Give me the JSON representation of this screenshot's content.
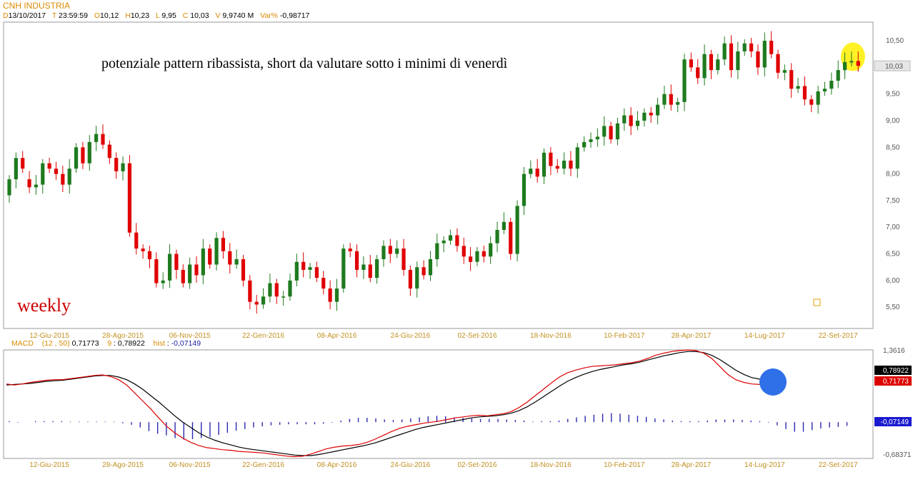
{
  "header": {
    "symbol": "CNH INDUSTRIA",
    "d_key": "D",
    "date": "13/10/2017",
    "t_key": "T",
    "time": "23:59:59",
    "o_key": "O",
    "open": "10,12",
    "h_key": "H",
    "high": "10,23",
    "l_key": "L",
    "low": "9,95",
    "c_key": "C",
    "close": "10,03",
    "v_key": "V",
    "volume": "9,9740 M",
    "var_key": "Var%",
    "var": "-0,98717"
  },
  "macd_header": {
    "label": "MACD",
    "params": "(12 , 50)",
    "macd_value": "0,71773",
    "signal_key": "9",
    "signal_value": "0,78922",
    "hist_key": "hist",
    "hist_value": "-0,07149"
  },
  "annotation": "potenziale pattern ribassista, short da valutare sotto i minimi di venerdì",
  "timeframe_label": "weekly",
  "colors": {
    "up": "#1e7a1e",
    "down": "#e00000",
    "macd": "#dd0000",
    "signal": "#000000",
    "hist": "#2a2ab0",
    "highlight_yellow": "#ffee00",
    "highlight_blue": "#2f6fe8",
    "tick": "#c09020"
  },
  "chart_data": [
    {
      "type": "candlestick",
      "title": "CNH INDUSTRIA",
      "ylim": [
        5.1,
        10.85
      ],
      "yticks": [
        "5,50",
        "6,00",
        "6,50",
        "7,00",
        "7,50",
        "8,00",
        "8,50",
        "9,00",
        "9,50",
        "10,50"
      ],
      "ytick_values": [
        5.5,
        6.0,
        6.5,
        7.0,
        7.5,
        8.0,
        8.5,
        9.0,
        9.5,
        10.5
      ],
      "last_price_label": "10,03",
      "last_price": 10.03,
      "xticks": [
        "12-Giu-2015",
        "28-Ago-2015",
        "06-Nov-2015",
        "22-Gen-2016",
        "08-Apr-2016",
        "24-Giu-2016",
        "02-Set-2016",
        "18-Nov-2016",
        "10-Feb-2017",
        "28-Apr-2017",
        "14-Lug-2017",
        "22-Set-2017"
      ],
      "xtick_index": [
        6,
        17,
        27,
        38,
        49,
        60,
        70,
        81,
        92,
        102,
        113,
        124
      ],
      "closes": [
        7.9,
        8.3,
        8.1,
        7.75,
        7.8,
        8.2,
        8.1,
        8.0,
        7.8,
        8.1,
        8.5,
        8.2,
        8.6,
        8.75,
        8.55,
        8.3,
        8.05,
        8.2,
        6.9,
        6.6,
        6.55,
        6.4,
        5.95,
        6.0,
        6.5,
        6.2,
        5.95,
        6.3,
        6.1,
        6.6,
        6.3,
        6.8,
        6.55,
        6.3,
        6.4,
        6.0,
        5.6,
        5.55,
        5.7,
        5.95,
        5.7,
        5.7,
        6.0,
        6.35,
        6.2,
        6.25,
        6.05,
        5.85,
        5.6,
        5.85,
        6.6,
        6.55,
        6.2,
        6.3,
        6.05,
        6.4,
        6.65,
        6.5,
        6.6,
        6.2,
        5.85,
        6.25,
        6.1,
        6.4,
        6.7,
        6.75,
        6.85,
        6.65,
        6.45,
        6.35,
        6.55,
        6.45,
        6.7,
        6.95,
        7.1,
        6.5,
        7.4,
        8.0,
        8.1,
        7.95,
        8.4,
        8.15,
        8.1,
        8.25,
        8.1,
        8.5,
        8.6,
        8.65,
        8.7,
        8.9,
        8.65,
        8.95,
        9.1,
        8.9,
        9.0,
        9.15,
        9.1,
        9.3,
        9.5,
        9.3,
        9.35,
        10.15,
        10.0,
        9.8,
        10.25,
        9.95,
        10.15,
        10.45,
        9.95,
        10.3,
        10.45,
        10.3,
        10.0,
        10.5,
        10.25,
        9.9,
        9.95,
        9.6,
        9.65,
        9.4,
        9.3,
        9.55,
        9.6,
        9.75,
        9.95,
        10.1,
        10.12,
        10.03
      ],
      "opens": [
        7.6,
        7.9,
        8.3,
        7.9,
        7.75,
        7.8,
        8.2,
        8.1,
        8.0,
        7.8,
        8.1,
        8.5,
        8.2,
        8.6,
        8.75,
        8.55,
        8.3,
        8.05,
        8.2,
        6.9,
        6.6,
        6.55,
        6.4,
        5.95,
        6.0,
        6.5,
        6.2,
        5.95,
        6.3,
        6.1,
        6.6,
        6.3,
        6.8,
        6.55,
        6.3,
        6.4,
        6.0,
        5.6,
        5.55,
        5.7,
        5.95,
        5.7,
        5.7,
        6.0,
        6.35,
        6.2,
        6.25,
        6.05,
        5.85,
        5.6,
        5.85,
        6.6,
        6.55,
        6.2,
        6.3,
        6.05,
        6.4,
        6.65,
        6.5,
        6.6,
        6.2,
        5.85,
        6.25,
        6.1,
        6.4,
        6.7,
        6.75,
        6.85,
        6.65,
        6.45,
        6.35,
        6.55,
        6.45,
        6.7,
        6.95,
        7.1,
        6.5,
        7.4,
        8.0,
        8.1,
        7.95,
        8.4,
        8.15,
        8.1,
        8.25,
        8.1,
        8.5,
        8.6,
        8.65,
        8.7,
        8.9,
        8.65,
        8.95,
        9.1,
        8.9,
        9.0,
        9.15,
        9.1,
        9.3,
        9.5,
        9.3,
        9.35,
        10.15,
        10.0,
        9.8,
        10.25,
        9.95,
        10.15,
        10.45,
        9.95,
        10.3,
        10.45,
        10.3,
        10.0,
        10.5,
        10.25,
        9.9,
        9.95,
        9.6,
        9.65,
        9.4,
        9.3,
        9.55,
        9.6,
        9.75,
        9.95,
        10.12,
        10.12
      ]
    },
    {
      "type": "line",
      "title": "MACD (12 , 50)",
      "ylim": [
        -0.68371,
        1.3616
      ],
      "ytick_labels": [
        "1,3616",
        "-0,68371"
      ],
      "value_labels": [
        "0,78922",
        "0,71773",
        "-0,07149"
      ],
      "xticks": [
        "12-Giu-2015",
        "28-Ago-2015",
        "06-Nov-2015",
        "22-Gen-2016",
        "08-Apr-2016",
        "24-Giu-2016",
        "02-Set-2016",
        "18-Nov-2016",
        "10-Feb-2017",
        "28-Apr-2017",
        "14-Lug-2017",
        "22-Set-2017"
      ],
      "series": [
        {
          "name": "MACD",
          "values": [
            0.72,
            0.7,
            0.72,
            0.75,
            0.77,
            0.79,
            0.8,
            0.8,
            0.82,
            0.84,
            0.86,
            0.88,
            0.89,
            0.86,
            0.8,
            0.7,
            0.55,
            0.4,
            0.25,
            0.08,
            -0.08,
            -0.2,
            -0.3,
            -0.38,
            -0.44,
            -0.48,
            -0.5,
            -0.52,
            -0.53,
            -0.55,
            -0.56,
            -0.57,
            -0.58,
            -0.6,
            -0.62,
            -0.64,
            -0.65,
            -0.64,
            -0.6,
            -0.55,
            -0.5,
            -0.47,
            -0.45,
            -0.44,
            -0.42,
            -0.38,
            -0.32,
            -0.25,
            -0.18,
            -0.12,
            -0.08,
            -0.05,
            -0.02,
            0.0,
            0.02,
            0.05,
            0.08,
            0.1,
            0.12,
            0.13,
            0.12,
            0.14,
            0.16,
            0.2,
            0.28,
            0.38,
            0.5,
            0.62,
            0.74,
            0.85,
            0.93,
            0.98,
            1.02,
            1.05,
            1.06,
            1.07,
            1.08,
            1.1,
            1.12,
            1.15,
            1.2,
            1.26,
            1.3,
            1.33,
            1.35,
            1.36,
            1.35,
            1.3,
            1.2,
            1.05,
            0.9,
            0.8,
            0.75,
            0.72,
            0.71,
            0.7,
            0.72
          ]
        },
        {
          "name": "Signal",
          "values": [
            0.7,
            0.71,
            0.72,
            0.73,
            0.75,
            0.77,
            0.78,
            0.79,
            0.81,
            0.83,
            0.85,
            0.87,
            0.88,
            0.88,
            0.85,
            0.8,
            0.72,
            0.62,
            0.5,
            0.38,
            0.25,
            0.12,
            0.0,
            -0.1,
            -0.2,
            -0.28,
            -0.34,
            -0.39,
            -0.43,
            -0.47,
            -0.5,
            -0.52,
            -0.54,
            -0.56,
            -0.58,
            -0.6,
            -0.62,
            -0.63,
            -0.63,
            -0.61,
            -0.58,
            -0.55,
            -0.52,
            -0.49,
            -0.46,
            -0.43,
            -0.39,
            -0.34,
            -0.29,
            -0.24,
            -0.19,
            -0.14,
            -0.1,
            -0.07,
            -0.04,
            -0.01,
            0.02,
            0.05,
            0.08,
            0.1,
            0.11,
            0.12,
            0.14,
            0.17,
            0.22,
            0.29,
            0.38,
            0.48,
            0.58,
            0.68,
            0.77,
            0.84,
            0.9,
            0.95,
            0.99,
            1.02,
            1.05,
            1.08,
            1.1,
            1.13,
            1.17,
            1.21,
            1.25,
            1.28,
            1.31,
            1.33,
            1.33,
            1.31,
            1.26,
            1.18,
            1.08,
            0.98,
            0.9,
            0.84,
            0.81,
            0.79,
            0.79
          ]
        }
      ],
      "histogram": [
        0.02,
        -0.01,
        0.0,
        0.02,
        0.02,
        0.02,
        0.02,
        0.01,
        0.01,
        0.01,
        0.01,
        0.01,
        0.01,
        -0.02,
        -0.05,
        -0.1,
        -0.17,
        -0.22,
        -0.25,
        -0.3,
        -0.33,
        -0.32,
        -0.3,
        -0.28,
        -0.24,
        -0.2,
        -0.16,
        -0.13,
        -0.1,
        -0.08,
        -0.06,
        -0.05,
        -0.04,
        -0.04,
        -0.04,
        -0.04,
        -0.03,
        -0.01,
        0.03,
        0.06,
        0.08,
        0.08,
        0.07,
        0.05,
        0.04,
        0.05,
        0.07,
        0.09,
        0.11,
        0.12,
        0.11,
        0.09,
        0.08,
        0.07,
        0.06,
        0.06,
        0.06,
        0.05,
        0.04,
        0.03,
        0.01,
        0.02,
        0.02,
        0.03,
        0.06,
        0.09,
        0.12,
        0.14,
        0.16,
        0.17,
        0.16,
        0.14,
        0.12,
        0.1,
        0.07,
        0.05,
        0.03,
        0.02,
        0.02,
        0.02,
        0.03,
        0.05,
        0.05,
        0.05,
        0.04,
        0.03,
        0.02,
        -0.01,
        -0.06,
        -0.13,
        -0.18,
        -0.18,
        -0.15,
        -0.12,
        -0.1,
        -0.09,
        -0.07
      ]
    }
  ]
}
